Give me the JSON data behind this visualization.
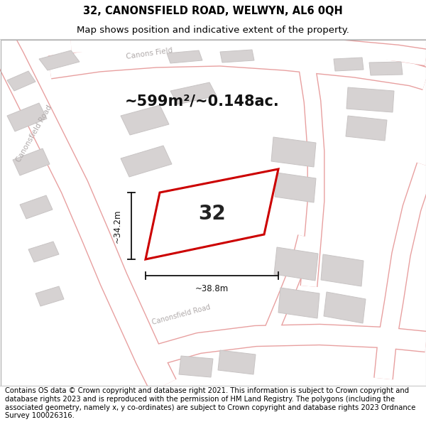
{
  "title_line1": "32, CANONSFIELD ROAD, WELWYN, AL6 0QH",
  "title_line2": "Map shows position and indicative extent of the property.",
  "footer_text": "Contains OS data © Crown copyright and database right 2021. This information is subject to Crown copyright and database rights 2023 and is reproduced with the permission of HM Land Registry. The polygons (including the associated geometry, namely x, y co-ordinates) are subject to Crown copyright and database rights 2023 Ordnance Survey 100026316.",
  "area_label": "~599m²/~0.148ac.",
  "number_label": "32",
  "dim_vertical": "~34.2m",
  "dim_horizontal": "~38.8m",
  "map_bg": "#f0edec",
  "road_fill": "#ffffff",
  "road_edge": "#e8a0a0",
  "building_fill": "#d6d2d2",
  "building_edge": "#c8c4c4",
  "highlight_edge": "#cc0000",
  "dim_color": "#111111",
  "road_label_color": "#b0aaaa",
  "title_fontsize": 10.5,
  "subtitle_fontsize": 9.5,
  "footer_fontsize": 7.2,
  "area_fontsize": 15,
  "number_fontsize": 20,
  "dim_fontsize": 8.5,
  "road_label_fontsize": 7.5
}
